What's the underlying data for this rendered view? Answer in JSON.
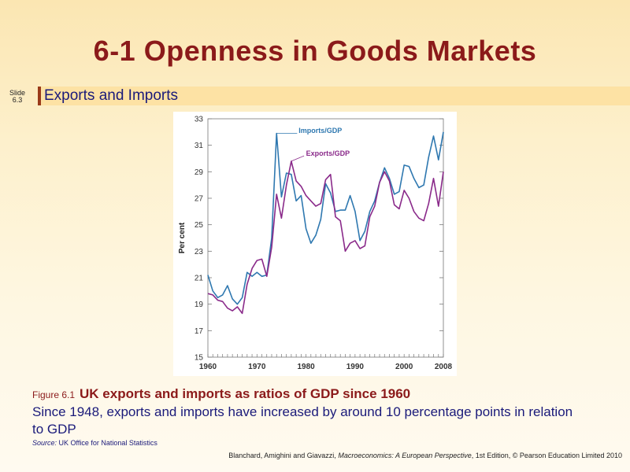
{
  "slide": {
    "title": "6-1  Openness in Goods Markets",
    "slide_label": "Slide",
    "slide_number": "6.3",
    "subtitle": "Exports and Imports"
  },
  "caption": {
    "figure_label": "Figure 6.1",
    "heading": "UK exports and imports as ratios of GDP since 1960",
    "text": "Since 1948, exports and imports have increased by around 10 percentage points in relation to GDP",
    "source_label": "Source:",
    "source_text": "UK Office for National Statistics"
  },
  "footer": {
    "authors": "Blanchard, Amighini and Giavazzi,",
    "book": "Macroeconomics: A European Perspective",
    "edition": ", 1st Edition, © Pearson Education Limited 2010"
  },
  "colors": {
    "imports": "#2f78b0",
    "exports": "#8a2a8a"
  },
  "chart_data": {
    "type": "line",
    "title": "",
    "xlabel": "",
    "ylabel": "Per cent",
    "xlim": [
      1960,
      2008
    ],
    "ylim": [
      15,
      33
    ],
    "x_ticks": [
      1960,
      1970,
      1980,
      1990,
      2000,
      2008
    ],
    "y_ticks": [
      15,
      17,
      19,
      21,
      23,
      25,
      27,
      29,
      31,
      33
    ],
    "x": [
      1960,
      1961,
      1962,
      1963,
      1964,
      1965,
      1966,
      1967,
      1968,
      1969,
      1970,
      1971,
      1972,
      1973,
      1974,
      1975,
      1976,
      1977,
      1978,
      1979,
      1980,
      1981,
      1982,
      1983,
      1984,
      1985,
      1986,
      1987,
      1988,
      1989,
      1990,
      1991,
      1992,
      1993,
      1994,
      1995,
      1996,
      1997,
      1998,
      1999,
      2000,
      2001,
      2002,
      2003,
      2004,
      2005,
      2006,
      2007,
      2008
    ],
    "series": [
      {
        "name": "Imports/GDP",
        "values": [
          21.2,
          20.0,
          19.5,
          19.7,
          20.4,
          19.4,
          19.0,
          19.5,
          21.4,
          21.1,
          21.4,
          21.1,
          21.2,
          24.0,
          31.9,
          27.1,
          28.9,
          28.8,
          26.8,
          27.2,
          24.7,
          23.6,
          24.2,
          25.4,
          28.1,
          27.4,
          26.0,
          26.1,
          26.1,
          27.2,
          26.0,
          23.8,
          24.5,
          26.0,
          26.8,
          28.2,
          29.3,
          28.5,
          27.3,
          27.5,
          29.5,
          29.4,
          28.5,
          27.8,
          28.0,
          30.1,
          31.7,
          29.9,
          32.0
        ]
      },
      {
        "name": "Exports/GDP",
        "values": [
          19.8,
          19.7,
          19.3,
          19.2,
          18.7,
          18.5,
          18.8,
          18.3,
          20.5,
          21.7,
          22.3,
          22.4,
          21.1,
          23.3,
          27.3,
          25.5,
          28.0,
          29.8,
          28.3,
          27.9,
          27.2,
          26.8,
          26.4,
          26.6,
          28.4,
          28.8,
          25.6,
          25.3,
          23.0,
          23.6,
          23.8,
          23.2,
          23.4,
          25.6,
          26.4,
          28.2,
          29.0,
          28.3,
          26.5,
          26.2,
          27.6,
          27.0,
          26.0,
          25.5,
          25.3,
          26.6,
          28.5,
          26.4,
          29.0
        ]
      }
    ],
    "annotations": [
      "Imports/GDP",
      "Exports/GDP"
    ]
  }
}
